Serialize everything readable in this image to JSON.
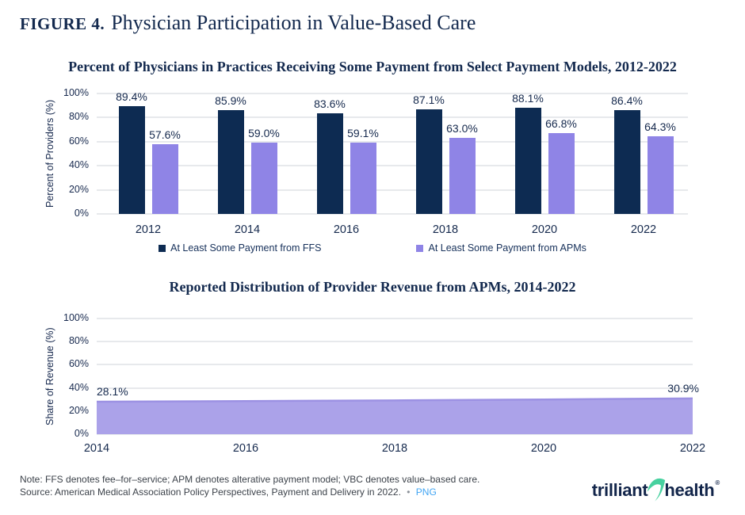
{
  "figure": {
    "label": "FIGURE 4.",
    "title": "Physician Participation in Value-Based Care"
  },
  "colors": {
    "navy": "#0d2b52",
    "purple_bar": "#8f84e6",
    "purple_area": "#aba2e9",
    "purple_line": "#9c91e3",
    "grid": "#e7e9ec",
    "text_navy": "#15294d",
    "link_blue": "#3fa4f3",
    "logo_green": "#47d19f"
  },
  "chart_data": [
    {
      "type": "bar",
      "title": "Percent of Physicians in Practices Receiving Some Payment from Select Payment Models, 2012-2022",
      "ylabel": "Percent of Providers (%)",
      "ylim": [
        0,
        100
      ],
      "grid": true,
      "legend_position": "bottom",
      "yticks": [
        "100%",
        "80%",
        "60%",
        "40%",
        "20%",
        "0%"
      ],
      "categories": [
        "2012",
        "2014",
        "2016",
        "2018",
        "2020",
        "2022"
      ],
      "series": [
        {
          "name": "At Least Some Payment from FFS",
          "values": [
            89.4,
            85.9,
            83.6,
            87.1,
            88.1,
            86.4
          ],
          "labels": [
            "89.4%",
            "85.9%",
            "83.6%",
            "87.1%",
            "88.1%",
            "86.4%"
          ]
        },
        {
          "name": "At Least Some Payment from APMs",
          "values": [
            57.6,
            59.0,
            59.1,
            63.0,
            66.8,
            64.3
          ],
          "labels": [
            "57.6%",
            "59.0%",
            "59.1%",
            "63.0%",
            "66.8%",
            "64.3%"
          ]
        }
      ]
    },
    {
      "type": "area",
      "title": "Reported Distribution of Provider Revenue from APMs, 2014-2022",
      "ylabel": "Share of Revenue (%)",
      "ylim": [
        0,
        100
      ],
      "grid": true,
      "yticks": [
        "100%",
        "80%",
        "60%",
        "40%",
        "20%",
        "0%"
      ],
      "x": [
        2014,
        2016,
        2018,
        2020,
        2022
      ],
      "xticks": [
        "2014",
        "2016",
        "2018",
        "2020",
        "2022"
      ],
      "values": [
        28.1,
        28.6,
        29.2,
        30.0,
        30.9
      ],
      "value_labels": {
        "first": "28.1%",
        "last": "30.9%"
      }
    }
  ],
  "footer": {
    "note": "Note: FFS denotes fee–for–service; APM denotes alterative payment model; VBC denotes value–based care.",
    "source": "Source: American Medical Association Policy Perspectives, Payment and Delivery in 2022.",
    "separator": "•",
    "link": "PNG"
  },
  "logo": {
    "part1": "trilliant",
    "part2": "health",
    "registered": "®"
  }
}
